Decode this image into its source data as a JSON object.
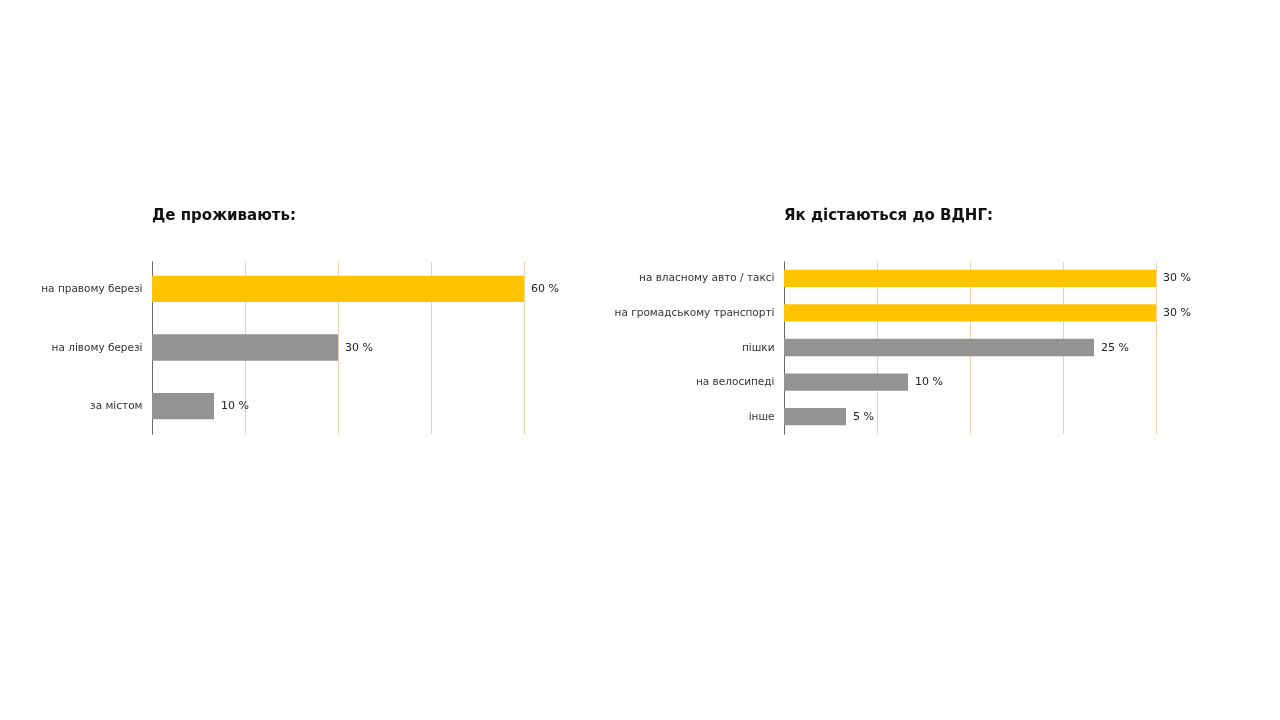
{
  "chart_data": [
    {
      "type": "bar",
      "orientation": "horizontal",
      "title": "Де проживають:",
      "categories": [
        "на правому березі",
        "на лівому березі",
        "за містом"
      ],
      "values": [
        60,
        30,
        10
      ],
      "colors": [
        "#ffc400",
        "#939393",
        "#939393"
      ],
      "value_labels": [
        "60 %",
        "30 %",
        "10 %"
      ],
      "xlim": [
        0,
        60
      ],
      "xticks": [
        {
          "value": 0,
          "label": null
        },
        {
          "value": 15,
          "label": null
        },
        {
          "value": 30,
          "label": null
        },
        {
          "value": 45,
          "label": null
        },
        {
          "value": 60,
          "label": null
        }
      ],
      "grid": "x",
      "tick_labels": "y",
      "relative": false
    },
    {
      "type": "bar",
      "orientation": "horizontal",
      "title": "Як дістаються до ВДНГ:",
      "categories": [
        "на власному авто / таксі",
        "на громадському транспорті",
        "пішки",
        "на велосипеді",
        "інше"
      ],
      "values": [
        30,
        30,
        25,
        10,
        5
      ],
      "colors": [
        "#ffc400",
        "#ffc400",
        "#939393",
        "#939393",
        "#939393"
      ],
      "value_labels": [
        "30 %",
        "30 %",
        "25 %",
        "10 %",
        "5 %"
      ],
      "xlim": [
        0,
        30
      ],
      "xticks": [
        {
          "value": 0,
          "label": null
        },
        {
          "value": 7.5,
          "label": null
        },
        {
          "value": 15,
          "label": null
        },
        {
          "value": 22.5,
          "label": null
        },
        {
          "value": 30,
          "label": null
        }
      ],
      "grid": "x",
      "tick_labels": "y",
      "relative": false
    }
  ]
}
